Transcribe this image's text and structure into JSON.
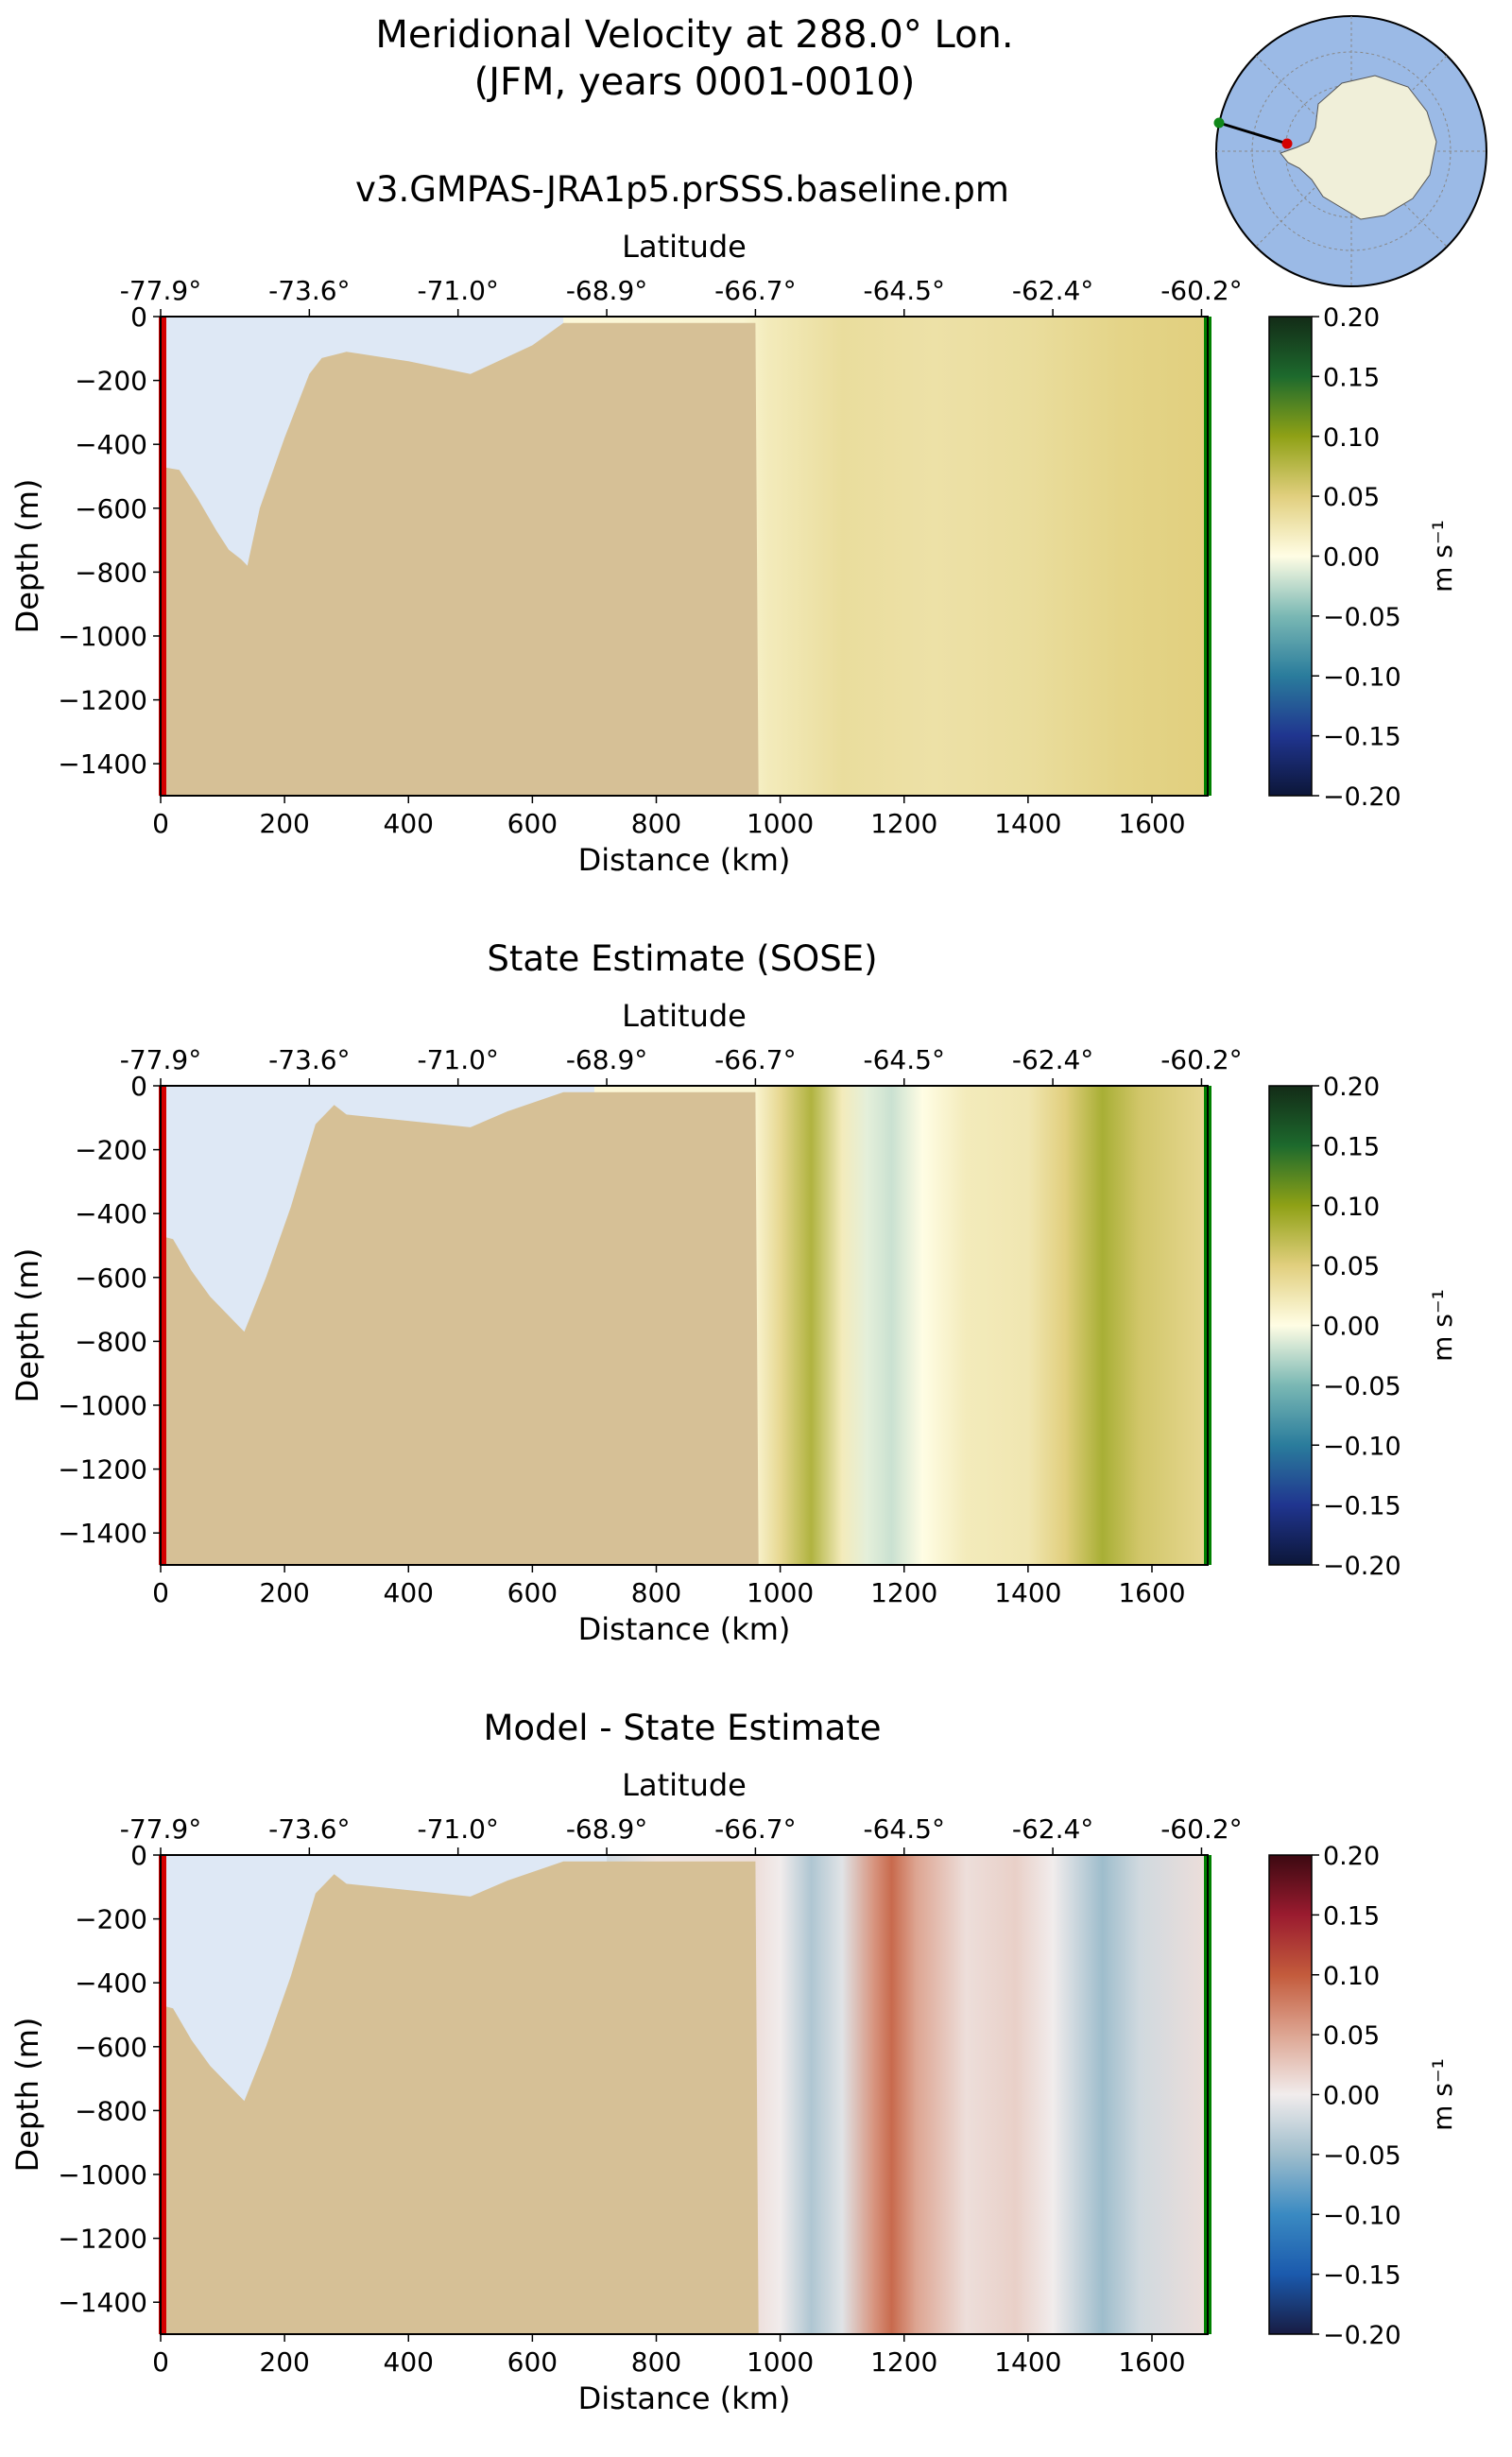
{
  "figure": {
    "title_line1": "Meridional Velocity at 288.0° Lon.",
    "title_line2": "(JFM, years 0001-0010)"
  },
  "colors": {
    "land": "#d6c096",
    "open_water": "#dee8f5",
    "start_marker": "#d40000",
    "end_marker": "#008000"
  },
  "inset_map": {
    "description_icon": "antarctica-locator-map-icon",
    "ocean": "#9bbae6",
    "land": "#f0efd9",
    "start_dot": "#d40000",
    "end_dot": "#11881a"
  },
  "chart_data": [
    {
      "type": "heatmap",
      "title": "v3.GMPAS-JRA1p5.prSSS.baseline.pm",
      "xlabel": "Distance (km)",
      "ylabel": "Depth (m)",
      "top_axis_label": "Latitude",
      "xlim": [
        0,
        1690
      ],
      "ylim": [
        -1500,
        0
      ],
      "xticks": [
        0,
        200,
        400,
        600,
        800,
        1000,
        1200,
        1400,
        1600
      ],
      "yticks": [
        0,
        -200,
        -400,
        -600,
        -800,
        -1000,
        -1200,
        -1400
      ],
      "top_ticks_km": [
        0,
        240,
        480,
        720,
        960,
        1200,
        1440,
        1680
      ],
      "top_tick_labels": [
        "-77.9°",
        "-73.6°",
        "-71.0°",
        "-68.9°",
        "-66.7°",
        "-64.5°",
        "-62.4°",
        "-60.2°"
      ],
      "colorbar": {
        "label": "m s⁻¹",
        "ticks": [
          0.2,
          0.15,
          0.1,
          0.05,
          0.0,
          -0.05,
          -0.1,
          -0.15,
          -0.2
        ],
        "tick_labels": [
          "0.20",
          "0.15",
          "0.10",
          "0.05",
          "0.00",
          "−0.05",
          "−0.10",
          "−0.15",
          "−0.20"
        ],
        "colormap": "speed-like"
      },
      "bottom_depth_m": [
        [
          0,
          -470
        ],
        [
          30,
          -480
        ],
        [
          60,
          -570
        ],
        [
          90,
          -670
        ],
        [
          110,
          -730
        ],
        [
          130,
          -760
        ],
        [
          140,
          -780
        ],
        [
          160,
          -600
        ],
        [
          200,
          -380
        ],
        [
          240,
          -180
        ],
        [
          260,
          -130
        ],
        [
          300,
          -110
        ],
        [
          400,
          -140
        ],
        [
          500,
          -180
        ],
        [
          600,
          -90
        ],
        [
          650,
          -20
        ],
        [
          700,
          -20
        ],
        [
          960,
          -20
        ],
        [
          965,
          -1500
        ]
      ],
      "ice_boundary_km": 650,
      "profile": [
        {
          "km": 650,
          "v": 0.005
        },
        {
          "km": 940,
          "v": 0.01
        },
        {
          "km": 980,
          "v": 0.02
        },
        {
          "km": 1100,
          "v": 0.035
        },
        {
          "km": 1250,
          "v": 0.03
        },
        {
          "km": 1400,
          "v": 0.035
        },
        {
          "km": 1550,
          "v": 0.045
        },
        {
          "km": 1690,
          "v": 0.05
        }
      ]
    },
    {
      "type": "heatmap",
      "title": "State Estimate (SOSE)",
      "xlabel": "Distance (km)",
      "ylabel": "Depth (m)",
      "top_axis_label": "Latitude",
      "xlim": [
        0,
        1690
      ],
      "ylim": [
        -1500,
        0
      ],
      "xticks": [
        0,
        200,
        400,
        600,
        800,
        1000,
        1200,
        1400,
        1600
      ],
      "yticks": [
        0,
        -200,
        -400,
        -600,
        -800,
        -1000,
        -1200,
        -1400
      ],
      "top_ticks_km": [
        0,
        240,
        480,
        720,
        960,
        1200,
        1440,
        1680
      ],
      "top_tick_labels": [
        "-77.9°",
        "-73.6°",
        "-71.0°",
        "-68.9°",
        "-66.7°",
        "-64.5°",
        "-62.4°",
        "-60.2°"
      ],
      "colorbar": {
        "label": "m s⁻¹",
        "ticks": [
          0.2,
          0.15,
          0.1,
          0.05,
          0.0,
          -0.05,
          -0.1,
          -0.15,
          -0.2
        ],
        "tick_labels": [
          "0.20",
          "0.15",
          "0.10",
          "0.05",
          "0.00",
          "−0.05",
          "−0.10",
          "−0.15",
          "−0.20"
        ],
        "colormap": "speed-like"
      },
      "bottom_depth_m": [
        [
          0,
          -470
        ],
        [
          20,
          -480
        ],
        [
          50,
          -580
        ],
        [
          80,
          -660
        ],
        [
          110,
          -720
        ],
        [
          135,
          -770
        ],
        [
          170,
          -600
        ],
        [
          210,
          -380
        ],
        [
          250,
          -120
        ],
        [
          280,
          -60
        ],
        [
          300,
          -90
        ],
        [
          500,
          -130
        ],
        [
          560,
          -80
        ],
        [
          620,
          -40
        ],
        [
          650,
          -20
        ],
        [
          960,
          -20
        ],
        [
          965,
          -1500
        ]
      ],
      "ice_boundary_km": 700,
      "profile": [
        {
          "km": 700,
          "v": 0.005
        },
        {
          "km": 960,
          "v": 0.01
        },
        {
          "km": 1000,
          "v": 0.04
        },
        {
          "km": 1050,
          "v": 0.08
        },
        {
          "km": 1100,
          "v": 0.02
        },
        {
          "km": 1140,
          "v": -0.01
        },
        {
          "km": 1180,
          "v": -0.02
        },
        {
          "km": 1230,
          "v": 0.0
        },
        {
          "km": 1300,
          "v": 0.02
        },
        {
          "km": 1400,
          "v": 0.025
        },
        {
          "km": 1460,
          "v": 0.05
        },
        {
          "km": 1520,
          "v": 0.085
        },
        {
          "km": 1580,
          "v": 0.06
        },
        {
          "km": 1690,
          "v": 0.04
        }
      ]
    },
    {
      "type": "heatmap",
      "title": "Model - State Estimate",
      "xlabel": "Distance (km)",
      "ylabel": "Depth (m)",
      "top_axis_label": "Latitude",
      "xlim": [
        0,
        1690
      ],
      "ylim": [
        -1500,
        0
      ],
      "xticks": [
        0,
        200,
        400,
        600,
        800,
        1000,
        1200,
        1400,
        1600
      ],
      "yticks": [
        0,
        -200,
        -400,
        -600,
        -800,
        -1000,
        -1200,
        -1400
      ],
      "top_ticks_km": [
        0,
        240,
        480,
        720,
        960,
        1200,
        1440,
        1680
      ],
      "top_tick_labels": [
        "-77.9°",
        "-73.6°",
        "-71.0°",
        "-68.9°",
        "-66.7°",
        "-64.5°",
        "-62.4°",
        "-60.2°"
      ],
      "colorbar": {
        "label": "m s⁻¹",
        "ticks": [
          0.2,
          0.15,
          0.1,
          0.05,
          0.0,
          -0.05,
          -0.1,
          -0.15,
          -0.2
        ],
        "tick_labels": [
          "0.20",
          "0.15",
          "0.10",
          "0.05",
          "0.00",
          "−0.05",
          "−0.10",
          "−0.15",
          "−0.20"
        ],
        "colormap": "balance"
      },
      "bottom_depth_m": [
        [
          0,
          -470
        ],
        [
          20,
          -480
        ],
        [
          50,
          -580
        ],
        [
          80,
          -660
        ],
        [
          110,
          -720
        ],
        [
          135,
          -770
        ],
        [
          170,
          -600
        ],
        [
          210,
          -380
        ],
        [
          250,
          -120
        ],
        [
          280,
          -60
        ],
        [
          300,
          -90
        ],
        [
          500,
          -130
        ],
        [
          560,
          -80
        ],
        [
          620,
          -40
        ],
        [
          650,
          -20
        ],
        [
          960,
          -20
        ],
        [
          965,
          -1500
        ]
      ],
      "ice_boundary_km": 720,
      "profile": [
        {
          "km": 720,
          "v": -0.02
        },
        {
          "km": 800,
          "v": 0.005
        },
        {
          "km": 960,
          "v": 0.01
        },
        {
          "km": 1000,
          "v": 0.0
        },
        {
          "km": 1050,
          "v": -0.04
        },
        {
          "km": 1100,
          "v": -0.01
        },
        {
          "km": 1150,
          "v": 0.06
        },
        {
          "km": 1180,
          "v": 0.09
        },
        {
          "km": 1220,
          "v": 0.05
        },
        {
          "km": 1300,
          "v": 0.01
        },
        {
          "km": 1380,
          "v": 0.02
        },
        {
          "km": 1440,
          "v": 0.0
        },
        {
          "km": 1520,
          "v": -0.05
        },
        {
          "km": 1580,
          "v": -0.02
        },
        {
          "km": 1690,
          "v": 0.01
        }
      ]
    }
  ]
}
